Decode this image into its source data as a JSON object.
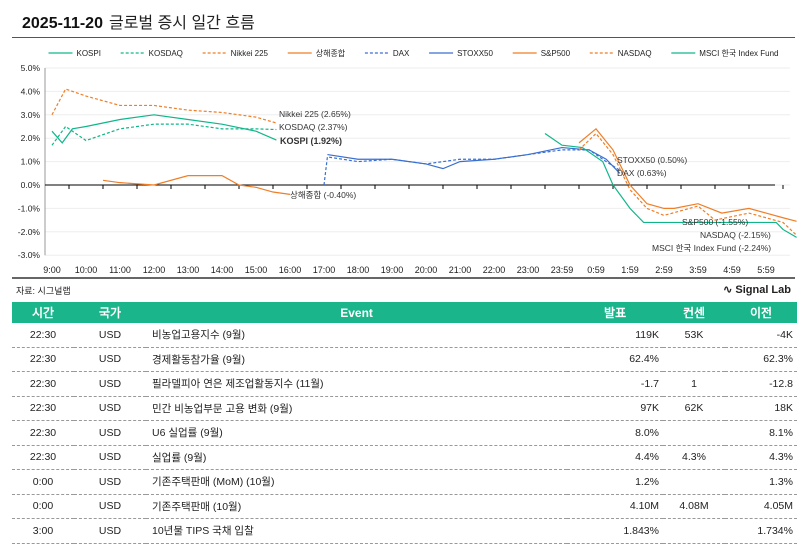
{
  "header": {
    "date": "2025-11-20",
    "title": "글로벌 증시 일간 흐름"
  },
  "chart_data": {
    "type": "line",
    "xlabels": [
      "9:00",
      "10:00",
      "11:00",
      "12:00",
      "13:00",
      "14:00",
      "15:00",
      "16:00",
      "17:00",
      "18:00",
      "19:00",
      "20:00",
      "21:00",
      "22:00",
      "23:00",
      "23:59",
      "0:59",
      "1:59",
      "2:59",
      "3:59",
      "4:59",
      "5:59"
    ],
    "ylim": [
      -3,
      5
    ],
    "yticks": [
      "5.0%",
      "4.0%",
      "3.0%",
      "2.0%",
      "1.0%",
      "0.0%",
      "-1.0%",
      "-2.0%",
      "-3.0%"
    ],
    "series": [
      {
        "name": "KOSPI",
        "color": "#10b68a",
        "dash": false,
        "end_label": "KOSPI (1.92%)",
        "points": [
          [
            0,
            2.3
          ],
          [
            0.3,
            1.8
          ],
          [
            0.6,
            2.4
          ],
          [
            1,
            2.5
          ],
          [
            2,
            2.8
          ],
          [
            3,
            3.0
          ],
          [
            4,
            2.8
          ],
          [
            5,
            2.6
          ],
          [
            6,
            2.3
          ],
          [
            6.6,
            1.92
          ]
        ]
      },
      {
        "name": "KOSDAQ",
        "color": "#10b68a",
        "dash": true,
        "end_label": "KOSDAQ (2.37%)",
        "points": [
          [
            0,
            1.7
          ],
          [
            0.4,
            2.5
          ],
          [
            1,
            1.9
          ],
          [
            2,
            2.4
          ],
          [
            3,
            2.6
          ],
          [
            4,
            2.6
          ],
          [
            5,
            2.4
          ],
          [
            6,
            2.4
          ],
          [
            6.6,
            2.37
          ]
        ]
      },
      {
        "name": "Nikkei 225",
        "color": "#f07e26",
        "dash": true,
        "end_label": "Nikkei 225 (2.65%)",
        "points": [
          [
            0,
            3
          ],
          [
            0.4,
            4.1
          ],
          [
            1,
            3.8
          ],
          [
            2,
            3.4
          ],
          [
            3,
            3.4
          ],
          [
            4,
            3.2
          ],
          [
            5,
            3.1
          ],
          [
            6,
            2.9
          ],
          [
            6.6,
            2.65
          ]
        ]
      },
      {
        "name": "상해종합",
        "color": "#f07e26",
        "dash": false,
        "end_label": "상해종합 (-0.40%)",
        "points": [
          [
            1.5,
            0.2
          ],
          [
            2,
            0.1
          ],
          [
            3,
            0.0
          ],
          [
            4,
            0.4
          ],
          [
            5,
            0.4
          ],
          [
            5.5,
            0.0
          ],
          [
            6,
            -0.1
          ],
          [
            6.5,
            -0.3
          ],
          [
            7,
            -0.4
          ]
        ]
      },
      {
        "name": "DAX",
        "color": "#3a6fd0",
        "dash": true,
        "end_label": "DAX (0.63%)",
        "points": [
          [
            8,
            0.0
          ],
          [
            8.1,
            1.2
          ],
          [
            9,
            1.0
          ],
          [
            10,
            1.1
          ],
          [
            11,
            0.9
          ],
          [
            12,
            1.1
          ],
          [
            13,
            1.1
          ],
          [
            14,
            1.3
          ],
          [
            15,
            1.5
          ],
          [
            15.8,
            1.5
          ],
          [
            16.3,
            1.0
          ],
          [
            16.7,
            0.63
          ]
        ]
      },
      {
        "name": "STOXX50",
        "color": "#3a6fd0",
        "dash": false,
        "end_label": "STOXX50 (0.50%)",
        "points": [
          [
            8.1,
            1.3
          ],
          [
            9,
            1.1
          ],
          [
            10,
            1.1
          ],
          [
            11,
            0.9
          ],
          [
            11.5,
            0.7
          ],
          [
            12,
            1.0
          ],
          [
            13,
            1.1
          ],
          [
            14,
            1.3
          ],
          [
            15,
            1.6
          ],
          [
            15.8,
            1.5
          ],
          [
            16.3,
            1.1
          ],
          [
            16.7,
            0.5
          ]
        ]
      },
      {
        "name": "S&P500",
        "color": "#f07e26",
        "dash": false,
        "end_label": "S&P500 (-1.55%)",
        "points": [
          [
            15.5,
            1.8
          ],
          [
            16,
            2.4
          ],
          [
            16.5,
            1.5
          ],
          [
            17,
            0
          ],
          [
            17.5,
            -0.8
          ],
          [
            18,
            -1.0
          ],
          [
            18.3,
            -1.0
          ],
          [
            19,
            -0.8
          ],
          [
            19.7,
            -1.2
          ],
          [
            20.5,
            -1.0
          ],
          [
            21,
            -1.2
          ],
          [
            21.5,
            -1.4
          ],
          [
            21.9,
            -1.55
          ]
        ]
      },
      {
        "name": "NASDAQ",
        "color": "#f07e26",
        "dash": true,
        "end_label": "NASDAQ (-2.15%)",
        "points": [
          [
            15.5,
            1.5
          ],
          [
            16,
            2.2
          ],
          [
            16.5,
            1.3
          ],
          [
            17,
            -0.2
          ],
          [
            17.5,
            -1.0
          ],
          [
            18,
            -1.3
          ],
          [
            19,
            -0.9
          ],
          [
            19.5,
            -1.5
          ],
          [
            20.5,
            -1.2
          ],
          [
            21,
            -1.4
          ],
          [
            21.5,
            -1.6
          ],
          [
            21.9,
            -2.15
          ]
        ]
      },
      {
        "name": "MSCI 한국 Index Fund",
        "color": "#10b68a",
        "dash": false,
        "end_label": "MSCI 한국 Index Fund (-2.24%)",
        "points": [
          [
            14.5,
            2.2
          ],
          [
            15,
            1.7
          ],
          [
            15.6,
            1.6
          ],
          [
            16.2,
            1.0
          ],
          [
            16.5,
            0
          ],
          [
            17,
            -1.0
          ],
          [
            17.4,
            -1.6
          ],
          [
            21.3,
            -1.6
          ],
          [
            21.5,
            -1.9
          ],
          [
            21.9,
            -2.24
          ]
        ]
      }
    ]
  },
  "source": "자료: 시그널랩",
  "brand": "Signal Lab",
  "table": {
    "headers": [
      "시간",
      "국가",
      "Event",
      "발표",
      "컨센",
      "이전"
    ],
    "rows": [
      [
        "22:30",
        "USD",
        "비농업고용지수 (9월)",
        "119K",
        "53K",
        "-4K"
      ],
      [
        "22:30",
        "USD",
        "경제활동참가율 (9월)",
        "62.4%",
        "",
        "62.3%"
      ],
      [
        "22:30",
        "USD",
        "필라델피아 연은 제조업활동지수 (11월)",
        "-1.7",
        "1",
        "-12.8"
      ],
      [
        "22:30",
        "USD",
        "민간 비농업부문 고용 변화 (9월)",
        "97K",
        "62K",
        "18K"
      ],
      [
        "22:30",
        "USD",
        "U6 실업률 (9월)",
        "8.0%",
        "",
        "8.1%"
      ],
      [
        "22:30",
        "USD",
        "실업률 (9월)",
        "4.4%",
        "4.3%",
        "4.3%"
      ],
      [
        "0:00",
        "USD",
        "기존주택판매 (MoM) (10월)",
        "1.2%",
        "",
        "1.3%"
      ],
      [
        "0:00",
        "USD",
        "기존주택판매 (10월)",
        "4.10M",
        "4.08M",
        "4.05M"
      ],
      [
        "3:00",
        "USD",
        "10년물 TIPS 국채 입찰",
        "1.843%",
        "",
        "1.734%"
      ]
    ]
  }
}
